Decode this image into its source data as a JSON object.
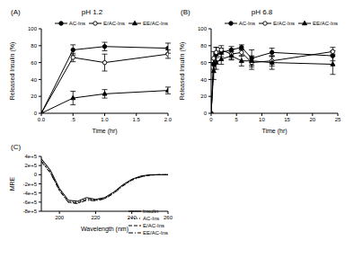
{
  "chart_data": [
    {
      "type": "line",
      "panel_label": "(A)",
      "title": "pH 1.2",
      "x_label": "Time (hr)",
      "y_label": "Released Insulin (%)",
      "x": [
        0,
        0.5,
        1,
        2
      ],
      "xlim": [
        0,
        2
      ],
      "xticks": [
        {
          "value": 0,
          "label": "0.0"
        },
        {
          "value": 0.5,
          "label": ".5"
        },
        {
          "value": 1,
          "label": "1.0"
        },
        {
          "value": 1.5,
          "label": "1.5"
        },
        {
          "value": 2,
          "label": "2.0"
        }
      ],
      "ylim": [
        0,
        100
      ],
      "yticks": [
        0,
        20,
        40,
        60,
        80,
        100
      ],
      "legend": "top right",
      "series": [
        {
          "name": "AC-Ins",
          "color": "#000000",
          "marker": "circle",
          "line_style": "solid",
          "values": [
            0,
            75,
            79,
            77
          ],
          "errors": [
            0,
            6,
            5,
            6
          ]
        },
        {
          "name": "E/AC-Ins",
          "color": "#000000",
          "marker": "open_circle",
          "line_style": "solid",
          "values": [
            0,
            66,
            60,
            70
          ],
          "errors": [
            0,
            5,
            10,
            5
          ]
        },
        {
          "name": "EE/AC-Ins",
          "color": "#000000",
          "marker": "triangle",
          "line_style": "solid",
          "values": [
            0,
            18,
            23,
            27
          ],
          "errors": [
            0,
            8,
            5,
            4
          ]
        }
      ]
    },
    {
      "type": "line",
      "panel_label": "(B)",
      "title": "pH 6.8",
      "x_label": "Time (hr)",
      "y_label": "Released Insulin (%)",
      "x": [
        0,
        0.5,
        1,
        2,
        4,
        6,
        8,
        12,
        24
      ],
      "xlim": [
        0,
        25
      ],
      "xticks": [
        0,
        5,
        10,
        15,
        20,
        25
      ],
      "ylim": [
        0,
        100
      ],
      "yticks": [
        0,
        20,
        40,
        60,
        80,
        100
      ],
      "legend": "top right",
      "series": [
        {
          "name": "AC-Ins",
          "color": "#000000",
          "marker": "circle",
          "line_style": "solid",
          "values": [
            0,
            58,
            70,
            72,
            75,
            78,
            65,
            72,
            68
          ],
          "errors": [
            0,
            6,
            8,
            5,
            4,
            3,
            10,
            5,
            6
          ]
        },
        {
          "name": "E/AC-Ins",
          "color": "#000000",
          "marker": "open_circle",
          "line_style": "solid",
          "values": [
            0,
            65,
            72,
            75,
            70,
            72,
            60,
            62,
            73
          ],
          "errors": [
            0,
            8,
            6,
            5,
            6,
            4,
            8,
            6,
            5
          ]
        },
        {
          "name": "EE/AC-Ins",
          "color": "#000000",
          "marker": "triangle",
          "line_style": "solid",
          "values": [
            0,
            50,
            60,
            64,
            68,
            62,
            62,
            60,
            58
          ],
          "errors": [
            0,
            10,
            8,
            6,
            5,
            6,
            5,
            8,
            12
          ]
        }
      ]
    },
    {
      "type": "line",
      "panel_label": "(C)",
      "x_label": "Wavelength (nm)",
      "y_label": "MRE",
      "x": [
        190,
        195,
        200,
        205,
        210,
        215,
        220,
        225,
        230,
        235,
        240,
        245,
        250,
        255,
        260
      ],
      "xlim": [
        190,
        260
      ],
      "xticks": [
        200,
        220,
        240,
        260
      ],
      "ylim": [
        -800000,
        400000
      ],
      "yticks": [
        {
          "value": -800000,
          "label": "-8e+5"
        },
        {
          "value": -600000,
          "label": "-6e+5"
        },
        {
          "value": -400000,
          "label": "-4e+5"
        },
        {
          "value": -200000,
          "label": "-2e+5"
        },
        0,
        {
          "value": 200000,
          "label": "2e+5"
        },
        {
          "value": 400000,
          "label": "4e+5"
        }
      ],
      "legend": "lower right",
      "series": [
        {
          "name": "Insulin",
          "color": "#000000",
          "marker": "none",
          "line_style": "solid",
          "values": [
            350000,
            100000,
            -300000,
            -560000,
            -580000,
            -500000,
            -540000,
            -500000,
            -380000,
            -220000,
            -100000,
            -30000,
            0,
            0,
            0
          ]
        },
        {
          "name": "AC-Ins",
          "color": "#000000",
          "marker": "none",
          "line_style": "dotted",
          "values": [
            330000,
            80000,
            -320000,
            -580000,
            -600000,
            -520000,
            -550000,
            -510000,
            -390000,
            -230000,
            -110000,
            -40000,
            -10000,
            0,
            0
          ]
        },
        {
          "name": "E/AC-Ins",
          "color": "#000000",
          "marker": "none",
          "line_style": "dashed",
          "values": [
            300000,
            50000,
            -340000,
            -600000,
            -620000,
            -540000,
            -560000,
            -520000,
            -400000,
            -240000,
            -110000,
            -40000,
            -10000,
            0,
            0
          ]
        },
        {
          "name": "EE/AC-Ins",
          "color": "#000000",
          "marker": "none",
          "line_style": "dashdot",
          "values": [
            280000,
            40000,
            -350000,
            -610000,
            -630000,
            -560000,
            -570000,
            -530000,
            -410000,
            -250000,
            -120000,
            -50000,
            -10000,
            0,
            0
          ]
        }
      ]
    }
  ]
}
